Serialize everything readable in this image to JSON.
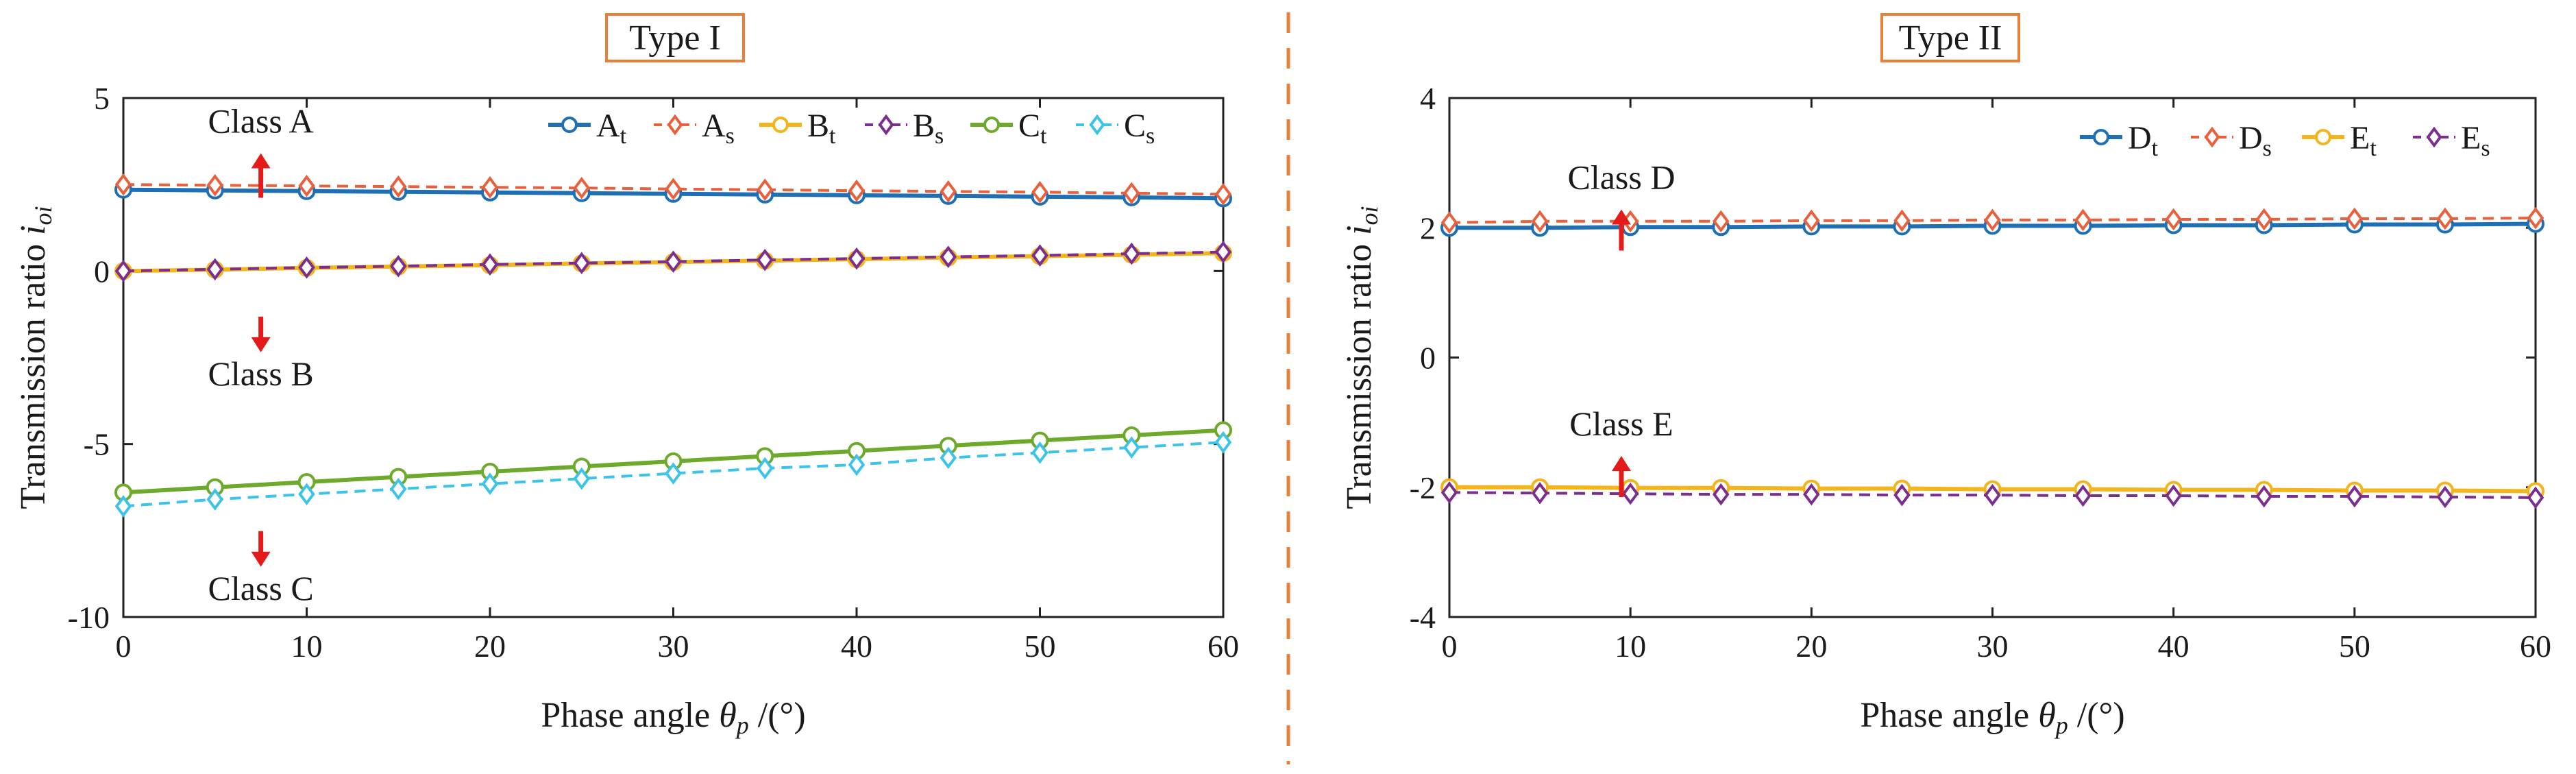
{
  "figure": {
    "divider_color": "#E8803A"
  },
  "chart_data": [
    {
      "type": "line",
      "panel_title": "Type I",
      "title_box_color": "#E8803A",
      "xlabel_main": "Phase angle ",
      "xlabel_symbol": "θ",
      "xlabel_sub": "p",
      "xlabel_unit": " /(°)",
      "ylabel_main": "Transmission ratio ",
      "ylabel_symbol": "i",
      "ylabel_sub": "oi",
      "xlim": [
        0,
        60
      ],
      "ylim": [
        -10,
        5
      ],
      "xticks": [
        0,
        10,
        20,
        30,
        40,
        50,
        60
      ],
      "yticks": [
        -10,
        -5,
        0,
        5
      ],
      "x": [
        0,
        5,
        10,
        15,
        20,
        25,
        30,
        35,
        40,
        45,
        50,
        55,
        60
      ],
      "series": [
        {
          "name": "At",
          "label": "A",
          "sub": "t",
          "color": "#1F6FB4",
          "marker": "circle",
          "dash": false,
          "values": [
            2.35,
            2.33,
            2.31,
            2.29,
            2.27,
            2.25,
            2.23,
            2.21,
            2.19,
            2.17,
            2.15,
            2.13,
            2.1
          ]
        },
        {
          "name": "As",
          "label": "A",
          "sub": "s",
          "color": "#E8603C",
          "marker": "diamond",
          "dash": true,
          "values": [
            2.5,
            2.48,
            2.46,
            2.44,
            2.42,
            2.4,
            2.37,
            2.35,
            2.32,
            2.3,
            2.28,
            2.25,
            2.22
          ]
        },
        {
          "name": "Bt",
          "label": "B",
          "sub": "t",
          "color": "#F2B51C",
          "marker": "circle",
          "dash": false,
          "values": [
            0.0,
            0.04,
            0.09,
            0.13,
            0.17,
            0.22,
            0.26,
            0.3,
            0.34,
            0.39,
            0.43,
            0.47,
            0.52
          ]
        },
        {
          "name": "Bs",
          "label": "B",
          "sub": "s",
          "color": "#7B2E8E",
          "marker": "diamond",
          "dash": true,
          "values": [
            0.0,
            0.05,
            0.1,
            0.14,
            0.19,
            0.23,
            0.27,
            0.32,
            0.36,
            0.41,
            0.45,
            0.5,
            0.55
          ]
        },
        {
          "name": "Ct",
          "label": "C",
          "sub": "t",
          "color": "#6DAA2C",
          "marker": "circle",
          "dash": false,
          "values": [
            -6.4,
            -6.25,
            -6.1,
            -5.95,
            -5.8,
            -5.65,
            -5.5,
            -5.35,
            -5.2,
            -5.05,
            -4.9,
            -4.75,
            -4.6
          ]
        },
        {
          "name": "Cs",
          "label": "C",
          "sub": "s",
          "color": "#3CC4E8",
          "marker": "diamond",
          "dash": true,
          "values": [
            -6.8,
            -6.6,
            -6.45,
            -6.3,
            -6.15,
            -6.0,
            -5.85,
            -5.7,
            -5.6,
            -5.4,
            -5.25,
            -5.1,
            -4.95
          ]
        }
      ],
      "annotations": [
        {
          "text": "Class A",
          "x": 7.5,
          "y": 4.0,
          "arrow": "up"
        },
        {
          "text": "Class B",
          "x": 7.5,
          "y": -3.3,
          "arrow": "down"
        },
        {
          "text": "Class C",
          "x": 7.5,
          "y": -9.5,
          "arrow": "down"
        }
      ],
      "legend": "top-right"
    },
    {
      "type": "line",
      "panel_title": "Type II",
      "title_box_color": "#E8803A",
      "xlabel_main": "Phase angle ",
      "xlabel_symbol": "θ",
      "xlabel_sub": "p",
      "xlabel_unit": " /(°)",
      "ylabel_main": "Transmission ratio ",
      "ylabel_symbol": "i",
      "ylabel_sub": "oi",
      "xlim": [
        0,
        60
      ],
      "ylim": [
        -4,
        4
      ],
      "xticks": [
        0,
        10,
        20,
        30,
        40,
        50,
        60
      ],
      "yticks": [
        -4,
        -2,
        0,
        2,
        4
      ],
      "x": [
        0,
        5,
        10,
        15,
        20,
        25,
        30,
        35,
        40,
        45,
        50,
        55,
        60
      ],
      "series": [
        {
          "name": "Dt",
          "label": "D",
          "sub": "t",
          "color": "#1F6FB4",
          "marker": "circle",
          "dash": false,
          "values": [
            2.0,
            2.0,
            2.01,
            2.01,
            2.02,
            2.02,
            2.03,
            2.03,
            2.04,
            2.04,
            2.05,
            2.05,
            2.06
          ]
        },
        {
          "name": "Ds",
          "label": "D",
          "sub": "s",
          "color": "#E8603C",
          "marker": "diamond",
          "dash": true,
          "values": [
            2.08,
            2.1,
            2.1,
            2.1,
            2.11,
            2.11,
            2.12,
            2.12,
            2.13,
            2.13,
            2.14,
            2.14,
            2.15
          ]
        },
        {
          "name": "Et",
          "label": "E",
          "sub": "t",
          "color": "#F2B51C",
          "marker": "circle",
          "dash": false,
          "values": [
            -2.0,
            -2.0,
            -2.01,
            -2.01,
            -2.02,
            -2.02,
            -2.03,
            -2.03,
            -2.04,
            -2.04,
            -2.05,
            -2.05,
            -2.06
          ]
        },
        {
          "name": "Es",
          "label": "E",
          "sub": "s",
          "color": "#7B2E8E",
          "marker": "diamond",
          "dash": true,
          "values": [
            -2.08,
            -2.09,
            -2.1,
            -2.11,
            -2.11,
            -2.12,
            -2.12,
            -2.13,
            -2.13,
            -2.14,
            -2.14,
            -2.15,
            -2.16
          ]
        }
      ],
      "annotations": [
        {
          "text": "Class D",
          "x": 9.5,
          "y": 2.6,
          "arrow": "up"
        },
        {
          "text": "Class E",
          "x": 9.5,
          "y": -1.2,
          "arrow": "up"
        }
      ],
      "legend": "top-right"
    }
  ]
}
